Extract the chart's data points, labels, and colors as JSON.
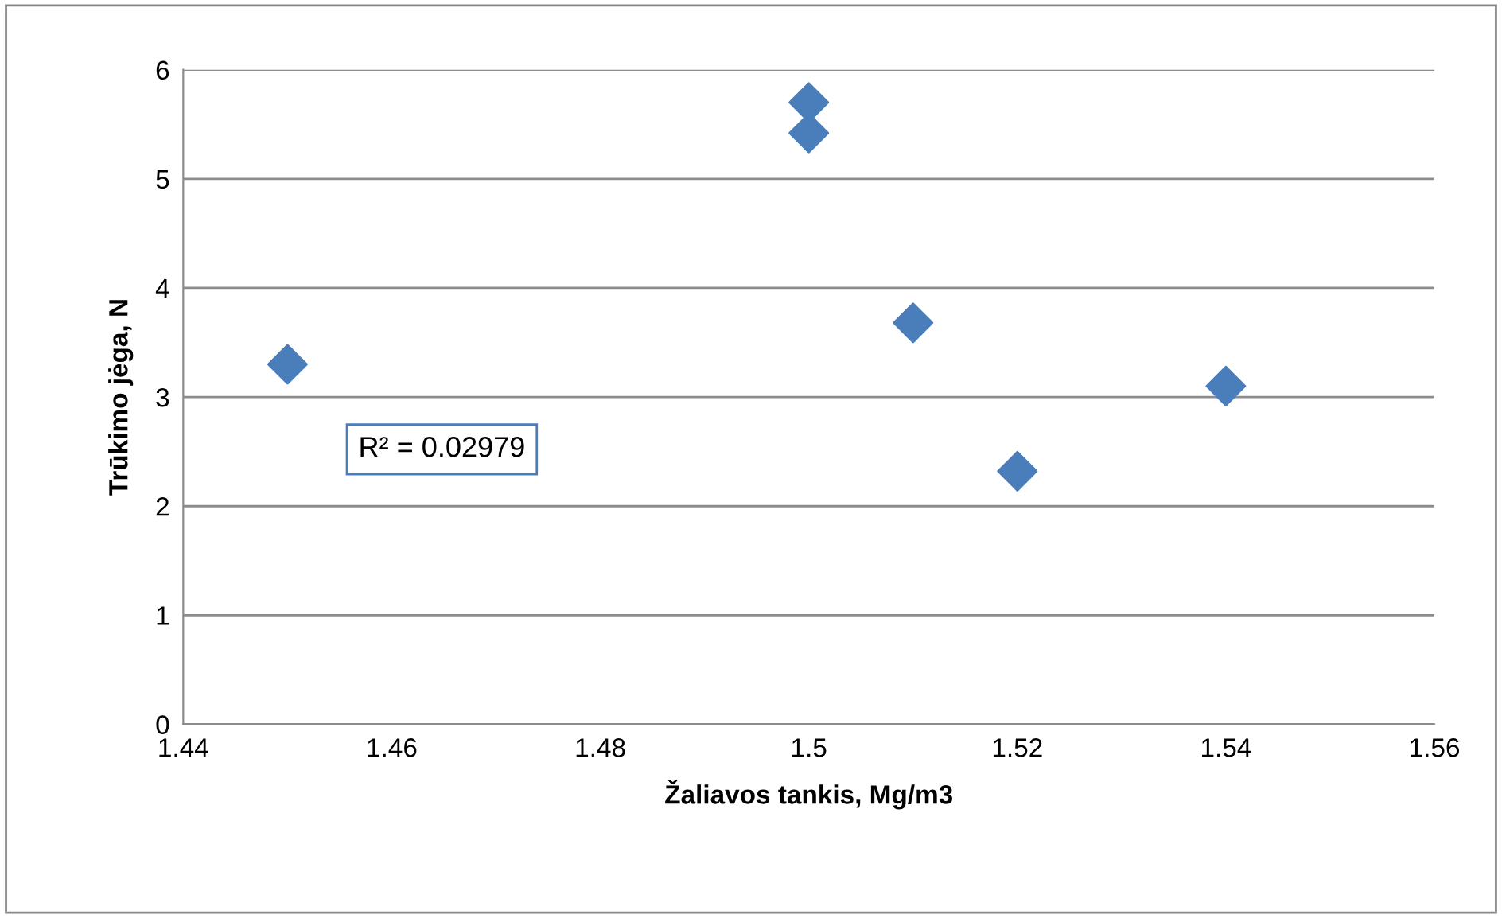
{
  "chart_data": {
    "type": "scatter",
    "xlabel": "Žaliavos tankis, Mg/m3",
    "ylabel": "Trūkimo jėga, N",
    "x": [
      1.45,
      1.5,
      1.5,
      1.51,
      1.52,
      1.54
    ],
    "series": [
      {
        "color": "#4a7ebb",
        "values": [
          3.3,
          5.7,
          5.42,
          3.68,
          2.32,
          3.1
        ]
      }
    ],
    "xlim": [
      1.44,
      1.56
    ],
    "xticks": [
      1.44,
      1.46,
      1.48,
      1.5,
      1.52,
      1.54,
      1.56
    ],
    "ylim": [
      0,
      6
    ],
    "yticks": [
      0,
      1,
      2,
      3,
      4,
      5,
      6
    ],
    "grid": "y",
    "marker": "diamond",
    "legend": false,
    "annotations": [
      "R² = 0.02979"
    ]
  }
}
